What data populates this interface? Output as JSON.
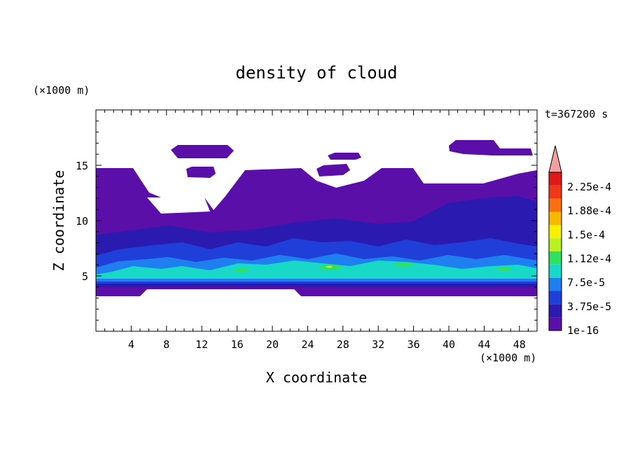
{
  "chart_data": {
    "type": "heatmap",
    "title": "density of cloud",
    "xlabel": "X coordinate",
    "ylabel": "Z coordinate",
    "x_unit": "(×1000 m)",
    "y_unit": "(×1000 m)",
    "time_label": "t=367200 s",
    "xlim": [
      0,
      50
    ],
    "ylim": [
      0,
      20
    ],
    "x_ticks": [
      4,
      8,
      12,
      16,
      20,
      24,
      28,
      32,
      36,
      40,
      44,
      48
    ],
    "y_ticks": [
      5,
      10,
      15
    ],
    "colorbar": {
      "labels": [
        "1e-16",
        "3.75e-5",
        "7.5e-5",
        "1.12e-4",
        "1.5e-4",
        "1.88e-4",
        "2.25e-4"
      ],
      "colors": [
        "#5a0fa8",
        "#2a1ab0",
        "#1f3fd8",
        "#1f7ff0",
        "#18d8c8",
        "#30e060",
        "#b8f020",
        "#f8f000",
        "#f8b800",
        "#f87010",
        "#f03818",
        "#e01818"
      ],
      "extend_color": "#f4a0a0"
    },
    "density_bands_km": {
      "cloud_base": 3.4,
      "moderate_layer_top": 8.8,
      "dense_core_bottom": 4.2,
      "dense_core_top": 6.2,
      "main_cloud_top": 14.5,
      "upper_patch_top": 17.2
    }
  }
}
